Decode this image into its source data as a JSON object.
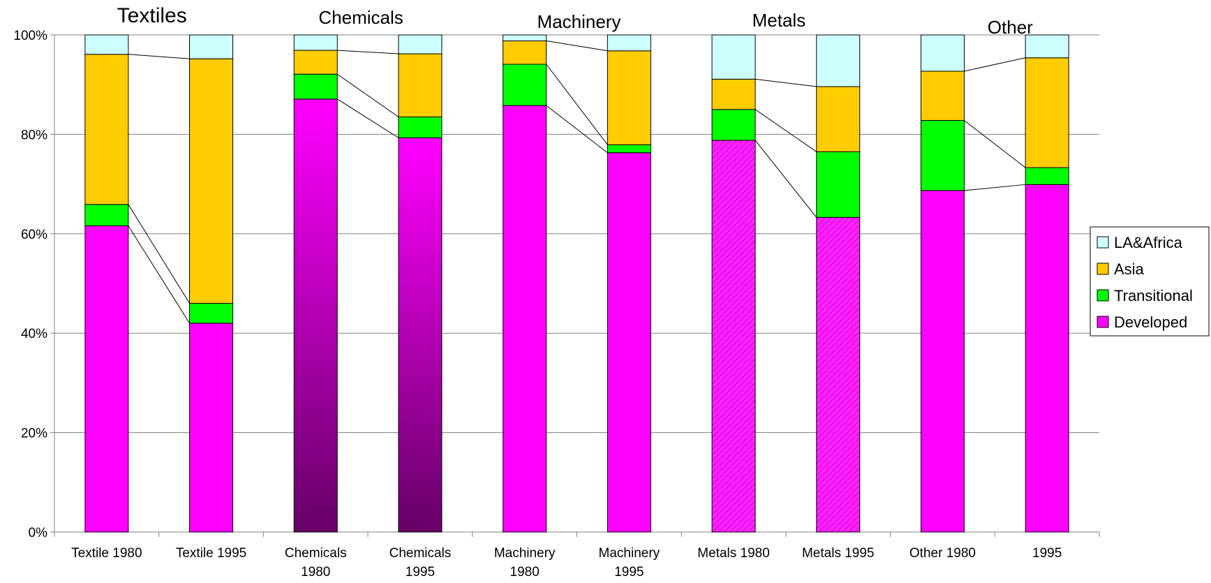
{
  "chart_data": {
    "type": "bar",
    "stacked": true,
    "percent": true,
    "categories": [
      [
        "Textile 1980"
      ],
      [
        "Textile 1995"
      ],
      [
        "Chemicals",
        "1980"
      ],
      [
        "Chemicals",
        "1995"
      ],
      [
        "Machinery",
        "1980"
      ],
      [
        "Machinery",
        "1995"
      ],
      [
        "Metals 1980"
      ],
      [
        "Metals 1995"
      ],
      [
        "Other 1980"
      ],
      [
        "1995"
      ]
    ],
    "series": [
      {
        "name": "Developed",
        "color": "#ff00ff",
        "values": [
          61.6,
          42.0,
          87.1,
          79.3,
          85.8,
          76.3,
          78.8,
          63.3,
          68.7,
          69.9
        ]
      },
      {
        "name": "Transitional",
        "color": "#00ff00",
        "values": [
          4.3,
          4.0,
          5.0,
          4.2,
          8.3,
          1.6,
          6.2,
          13.2,
          14.1,
          3.4
        ]
      },
      {
        "name": "Asia",
        "color": "#ffcc00",
        "values": [
          30.2,
          49.2,
          4.8,
          12.7,
          4.7,
          18.9,
          6.1,
          13.1,
          9.9,
          22.1
        ]
      },
      {
        "name": "LA&Africa",
        "color": "#ccffff",
        "values": [
          3.9,
          4.8,
          3.1,
          3.8,
          1.2,
          3.2,
          8.9,
          10.4,
          7.3,
          4.6
        ]
      }
    ],
    "ylim": [
      0,
      100
    ],
    "yticks": [
      "0%",
      "20%",
      "40%",
      "60%",
      "80%",
      "100%"
    ],
    "grid": true,
    "legend_position": "right",
    "legend_order": [
      "LA&Africa",
      "Asia",
      "Transitional",
      "Developed"
    ],
    "group_titles": [
      "Textiles",
      "Chemicals",
      "Machinery",
      "Metals",
      "Other"
    ],
    "gradient_bars": [
      2,
      3
    ],
    "hatched_bars": [
      6,
      7
    ],
    "gradient_dark_color": "#660066",
    "connector_lines": true
  }
}
